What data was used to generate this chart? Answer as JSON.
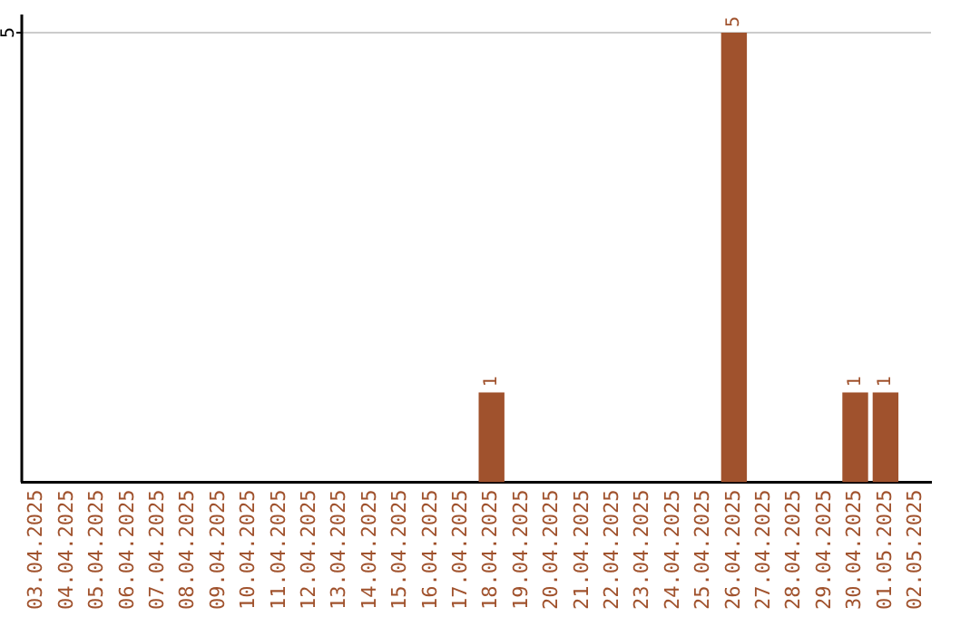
{
  "chart_data": {
    "type": "bar",
    "categories": [
      "03.04.2025",
      "04.04.2025",
      "05.04.2025",
      "06.04.2025",
      "07.04.2025",
      "08.04.2025",
      "09.04.2025",
      "10.04.2025",
      "11.04.2025",
      "12.04.2025",
      "13.04.2025",
      "14.04.2025",
      "15.04.2025",
      "16.04.2025",
      "17.04.2025",
      "18.04.2025",
      "19.04.2025",
      "20.04.2025",
      "21.04.2025",
      "22.04.2025",
      "23.04.2025",
      "24.04.2025",
      "25.04.2025",
      "26.04.2025",
      "27.04.2025",
      "28.04.2025",
      "29.04.2025",
      "30.04.2025",
      "01.05.2025",
      "02.05.2025"
    ],
    "values": [
      null,
      null,
      null,
      null,
      null,
      null,
      null,
      null,
      null,
      null,
      null,
      null,
      null,
      null,
      null,
      1,
      null,
      null,
      null,
      null,
      null,
      null,
      null,
      5,
      null,
      null,
      null,
      1,
      1,
      null
    ],
    "value_labels": [
      null,
      null,
      null,
      null,
      null,
      null,
      null,
      null,
      null,
      null,
      null,
      null,
      null,
      null,
      null,
      "1",
      null,
      null,
      null,
      null,
      null,
      null,
      null,
      "5",
      null,
      null,
      null,
      "1",
      "1",
      null
    ],
    "color": "#a0522d",
    "annotations": [
      "5"
    ],
    "legend": false
  }
}
